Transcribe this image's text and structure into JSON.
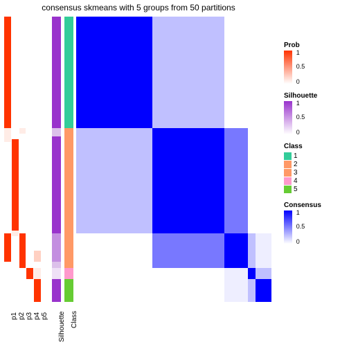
{
  "title": "consensus skmeans with 5 groups from 50 partitions",
  "colors": {
    "white": "#ffffff",
    "red": "#ff3300",
    "red_light": "#ffd0c2",
    "red_faint": "#ffece6",
    "purple": "#9933cc",
    "purple_mid": "#c38ee0",
    "purple_light": "#dcc0ea",
    "purple_faint": "#efe0f6",
    "teal": "#33cc99",
    "orange": "#ff9966",
    "pink": "#ff99cc",
    "green": "#66cc33",
    "blue": "#0000ff",
    "blue_mid": "#7878ff",
    "blue_light": "#c0c0ff",
    "blue_faint": "#eeeeff"
  },
  "group_fractions": [
    0.39,
    0.37,
    0.12,
    0.04,
    0.08
  ],
  "prob_tracks": {
    "labels": [
      "p1",
      "p2",
      "p3",
      "p4",
      "p5"
    ],
    "data": [
      [
        {
          "f": 0.39,
          "c": "red"
        },
        {
          "f": 0.05,
          "c": "red_faint"
        },
        {
          "f": 0.32,
          "c": "white"
        },
        {
          "f": 0.1,
          "c": "red"
        },
        {
          "f": 0.14,
          "c": "white"
        }
      ],
      [
        {
          "f": 0.43,
          "c": "white"
        },
        {
          "f": 0.32,
          "c": "red"
        },
        {
          "f": 0.02,
          "c": "red_faint"
        },
        {
          "f": 0.23,
          "c": "white"
        }
      ],
      [
        {
          "f": 0.39,
          "c": "white"
        },
        {
          "f": 0.02,
          "c": "red_faint"
        },
        {
          "f": 0.35,
          "c": "white"
        },
        {
          "f": 0.12,
          "c": "red"
        },
        {
          "f": 0.12,
          "c": "white"
        }
      ],
      [
        {
          "f": 0.88,
          "c": "white"
        },
        {
          "f": 0.04,
          "c": "red"
        },
        {
          "f": 0.08,
          "c": "white"
        }
      ],
      [
        {
          "f": 0.82,
          "c": "white"
        },
        {
          "f": 0.04,
          "c": "red_light"
        },
        {
          "f": 0.02,
          "c": "white"
        },
        {
          "f": 0.04,
          "c": "red_faint"
        },
        {
          "f": 0.08,
          "c": "red"
        }
      ]
    ]
  },
  "silhouette_track": [
    {
      "f": 0.39,
      "c": "purple"
    },
    {
      "f": 0.03,
      "c": "purple_light"
    },
    {
      "f": 0.34,
      "c": "purple"
    },
    {
      "f": 0.1,
      "c": "purple_mid"
    },
    {
      "f": 0.02,
      "c": "purple_light"
    },
    {
      "f": 0.04,
      "c": "purple_faint"
    },
    {
      "f": 0.08,
      "c": "purple"
    }
  ],
  "class_track": [
    {
      "f": 0.39,
      "c": "teal"
    },
    {
      "f": 0.37,
      "c": "orange"
    },
    {
      "f": 0.12,
      "c": "orange"
    },
    {
      "f": 0.04,
      "c": "pink"
    },
    {
      "f": 0.08,
      "c": "green"
    }
  ],
  "side_labels": {
    "sil": "Silhouette",
    "cls": "Class"
  },
  "heatmap_blocks": [
    {
      "r": 0,
      "c": 0,
      "rs": 1,
      "cs": 1,
      "col": "blue"
    },
    {
      "r": 0,
      "c": 1,
      "rs": 1,
      "cs": 1,
      "col": "blue_light"
    },
    {
      "r": 1,
      "c": 0,
      "rs": 1,
      "cs": 1,
      "col": "blue_light"
    },
    {
      "r": 1,
      "c": 1,
      "rs": 1,
      "cs": 1,
      "col": "blue"
    },
    {
      "r": 1,
      "c": 2,
      "rs": 1,
      "cs": 1,
      "col": "blue_mid"
    },
    {
      "r": 2,
      "c": 1,
      "rs": 1,
      "cs": 1,
      "col": "blue_mid"
    },
    {
      "r": 2,
      "c": 2,
      "rs": 1,
      "cs": 1,
      "col": "blue"
    },
    {
      "r": 2,
      "c": 3,
      "rs": 1,
      "cs": 1,
      "col": "blue_light"
    },
    {
      "r": 2,
      "c": 4,
      "rs": 1,
      "cs": 1,
      "col": "blue_faint"
    },
    {
      "r": 3,
      "c": 2,
      "rs": 1,
      "cs": 1,
      "col": "blue_faint"
    },
    {
      "r": 3,
      "c": 3,
      "rs": 1,
      "cs": 1,
      "col": "blue"
    },
    {
      "r": 3,
      "c": 4,
      "rs": 1,
      "cs": 1,
      "col": "blue_light"
    },
    {
      "r": 4,
      "c": 2,
      "rs": 1,
      "cs": 1,
      "col": "blue_faint"
    },
    {
      "r": 4,
      "c": 3,
      "rs": 1,
      "cs": 1,
      "col": "blue_light"
    },
    {
      "r": 4,
      "c": 4,
      "rs": 1,
      "cs": 1,
      "col": "blue"
    }
  ],
  "legends": {
    "prob": {
      "title": "Prob",
      "ticks": [
        "1",
        "0.5",
        "0"
      ],
      "from": "red",
      "to": "white"
    },
    "sil": {
      "title": "Silhouette",
      "ticks": [
        "1",
        "0.5",
        "0"
      ],
      "from": "purple",
      "to": "white"
    },
    "cls": {
      "title": "Class",
      "items": [
        {
          "label": "1",
          "c": "teal"
        },
        {
          "label": "2",
          "c": "orange"
        },
        {
          "label": "3",
          "c": "orange"
        },
        {
          "label": "4",
          "c": "pink"
        },
        {
          "label": "5",
          "c": "green"
        }
      ]
    },
    "cons": {
      "title": "Consensus",
      "ticks": [
        "1",
        "0.5",
        "0"
      ],
      "from": "blue",
      "to": "white"
    }
  }
}
